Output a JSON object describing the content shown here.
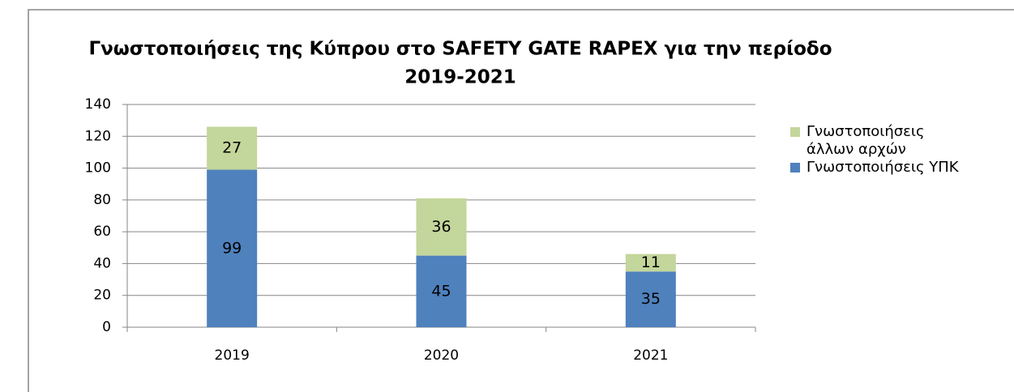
{
  "chart_data": {
    "type": "stacked_bar",
    "title": [
      "Γνωστοποιήσεις της Κύπρου στο SAFETY GATE RAPEX για την περίοδο",
      "2019-2021"
    ],
    "categories": [
      "2019",
      "2020",
      "2021"
    ],
    "series": [
      {
        "name": "Γνωστοποιήσεις ΥΠΚ",
        "color": "#4f81bd",
        "values": [
          99,
          45,
          35
        ]
      },
      {
        "name": "Γνωστοποιήσεις άλλων αρχών",
        "color": "#c3d69b",
        "values": [
          27,
          36,
          11
        ]
      }
    ],
    "ylim": [
      0,
      140
    ],
    "yticks": [
      0,
      20,
      40,
      60,
      80,
      100,
      120,
      140
    ],
    "grid": true,
    "legend": "right"
  }
}
